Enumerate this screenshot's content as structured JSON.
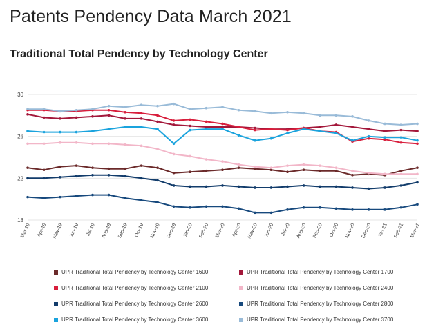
{
  "page": {
    "title": "Patents Pendency Data March 2021"
  },
  "chart_data": {
    "type": "line",
    "title": "Traditional Total Pendency by Technology Center",
    "xlabel": "",
    "ylabel": "",
    "ylim": [
      18,
      30
    ],
    "yticks": [
      18,
      22,
      26,
      30
    ],
    "grid": true,
    "legend_position": "bottom",
    "categories": [
      "Mar-19",
      "Apr-19",
      "May-19",
      "Jun-19",
      "Jul-19",
      "Aug-19",
      "Sep-19",
      "Oct-19",
      "Nov-19",
      "Dec-19",
      "Jan-20",
      "Feb-20",
      "Mar-20",
      "Apr-20",
      "May-20",
      "Jun-20",
      "Jul-20",
      "Aug-20",
      "Sep-20",
      "Oct-20",
      "Nov-20",
      "Dec-20",
      "Jan-21",
      "Feb-21",
      "Mar-21"
    ],
    "series": [
      {
        "name": "UPR Traditional Total Pendency by Technology Center 1600",
        "color": "#6b2a2a",
        "values": [
          23.0,
          22.8,
          23.1,
          23.2,
          23.0,
          22.9,
          22.9,
          23.2,
          23.0,
          22.5,
          22.6,
          22.7,
          22.8,
          23.0,
          22.9,
          22.8,
          22.6,
          22.8,
          22.7,
          22.7,
          22.3,
          22.4,
          22.3,
          22.7,
          23.0
        ]
      },
      {
        "name": "UPR Traditional Total Pendency by Technology Center 1700",
        "color": "#a3173a",
        "values": [
          28.1,
          27.8,
          27.7,
          27.8,
          27.9,
          28.0,
          27.7,
          27.7,
          27.4,
          27.1,
          27.0,
          26.9,
          26.9,
          26.9,
          26.8,
          26.7,
          26.7,
          26.8,
          26.9,
          27.1,
          26.9,
          26.7,
          26.5,
          26.6,
          26.5
        ]
      },
      {
        "name": "UPR Traditional Total Pendency by Technology Center 2100",
        "color": "#d81e3c",
        "values": [
          28.5,
          28.5,
          28.4,
          28.4,
          28.5,
          28.5,
          28.3,
          28.2,
          28.0,
          27.5,
          27.6,
          27.4,
          27.2,
          26.9,
          26.6,
          26.7,
          26.6,
          26.8,
          26.5,
          26.4,
          25.5,
          25.8,
          25.7,
          25.4,
          25.3
        ]
      },
      {
        "name": "UPR Traditional Total Pendency by Technology Center 2400",
        "color": "#f2b6c8",
        "values": [
          25.3,
          25.3,
          25.4,
          25.4,
          25.3,
          25.3,
          25.2,
          25.1,
          24.8,
          24.3,
          24.1,
          23.8,
          23.6,
          23.3,
          23.1,
          23.0,
          23.2,
          23.3,
          23.2,
          23.0,
          22.7,
          22.5,
          22.4,
          22.4,
          22.4
        ]
      },
      {
        "name": "UPR Traditional Total Pendency by Technology Center 2600",
        "color": "#123c6b",
        "values": [
          22.0,
          22.0,
          22.1,
          22.2,
          22.3,
          22.3,
          22.2,
          22.0,
          21.8,
          21.3,
          21.2,
          21.2,
          21.3,
          21.2,
          21.1,
          21.1,
          21.2,
          21.3,
          21.2,
          21.2,
          21.1,
          21.0,
          21.1,
          21.3,
          21.6
        ]
      },
      {
        "name": "UPR Traditional Total Pendency by Technology Center 2800",
        "color": "#17497d",
        "values": [
          20.2,
          20.1,
          20.2,
          20.3,
          20.4,
          20.4,
          20.1,
          19.9,
          19.7,
          19.3,
          19.2,
          19.3,
          19.3,
          19.1,
          18.7,
          18.7,
          19.0,
          19.2,
          19.2,
          19.1,
          19.0,
          19.0,
          19.0,
          19.2,
          19.5
        ]
      },
      {
        "name": "UPR Traditional Total Pendency by Technology Center 3600",
        "color": "#1aa3dd",
        "values": [
          26.5,
          26.4,
          26.4,
          26.4,
          26.5,
          26.7,
          26.9,
          26.9,
          26.7,
          25.3,
          26.6,
          26.7,
          26.7,
          26.1,
          25.6,
          25.8,
          26.3,
          26.7,
          26.5,
          26.3,
          25.6,
          26.0,
          25.9,
          25.9,
          25.6
        ]
      },
      {
        "name": "UPR Traditional Total Pendency by Technology Center 3700",
        "color": "#99bbd8",
        "values": [
          28.6,
          28.6,
          28.4,
          28.5,
          28.6,
          28.9,
          28.8,
          29.0,
          28.9,
          29.1,
          28.6,
          28.7,
          28.8,
          28.5,
          28.4,
          28.2,
          28.3,
          28.2,
          28.0,
          28.0,
          27.9,
          27.5,
          27.2,
          27.1,
          27.2
        ]
      }
    ]
  }
}
